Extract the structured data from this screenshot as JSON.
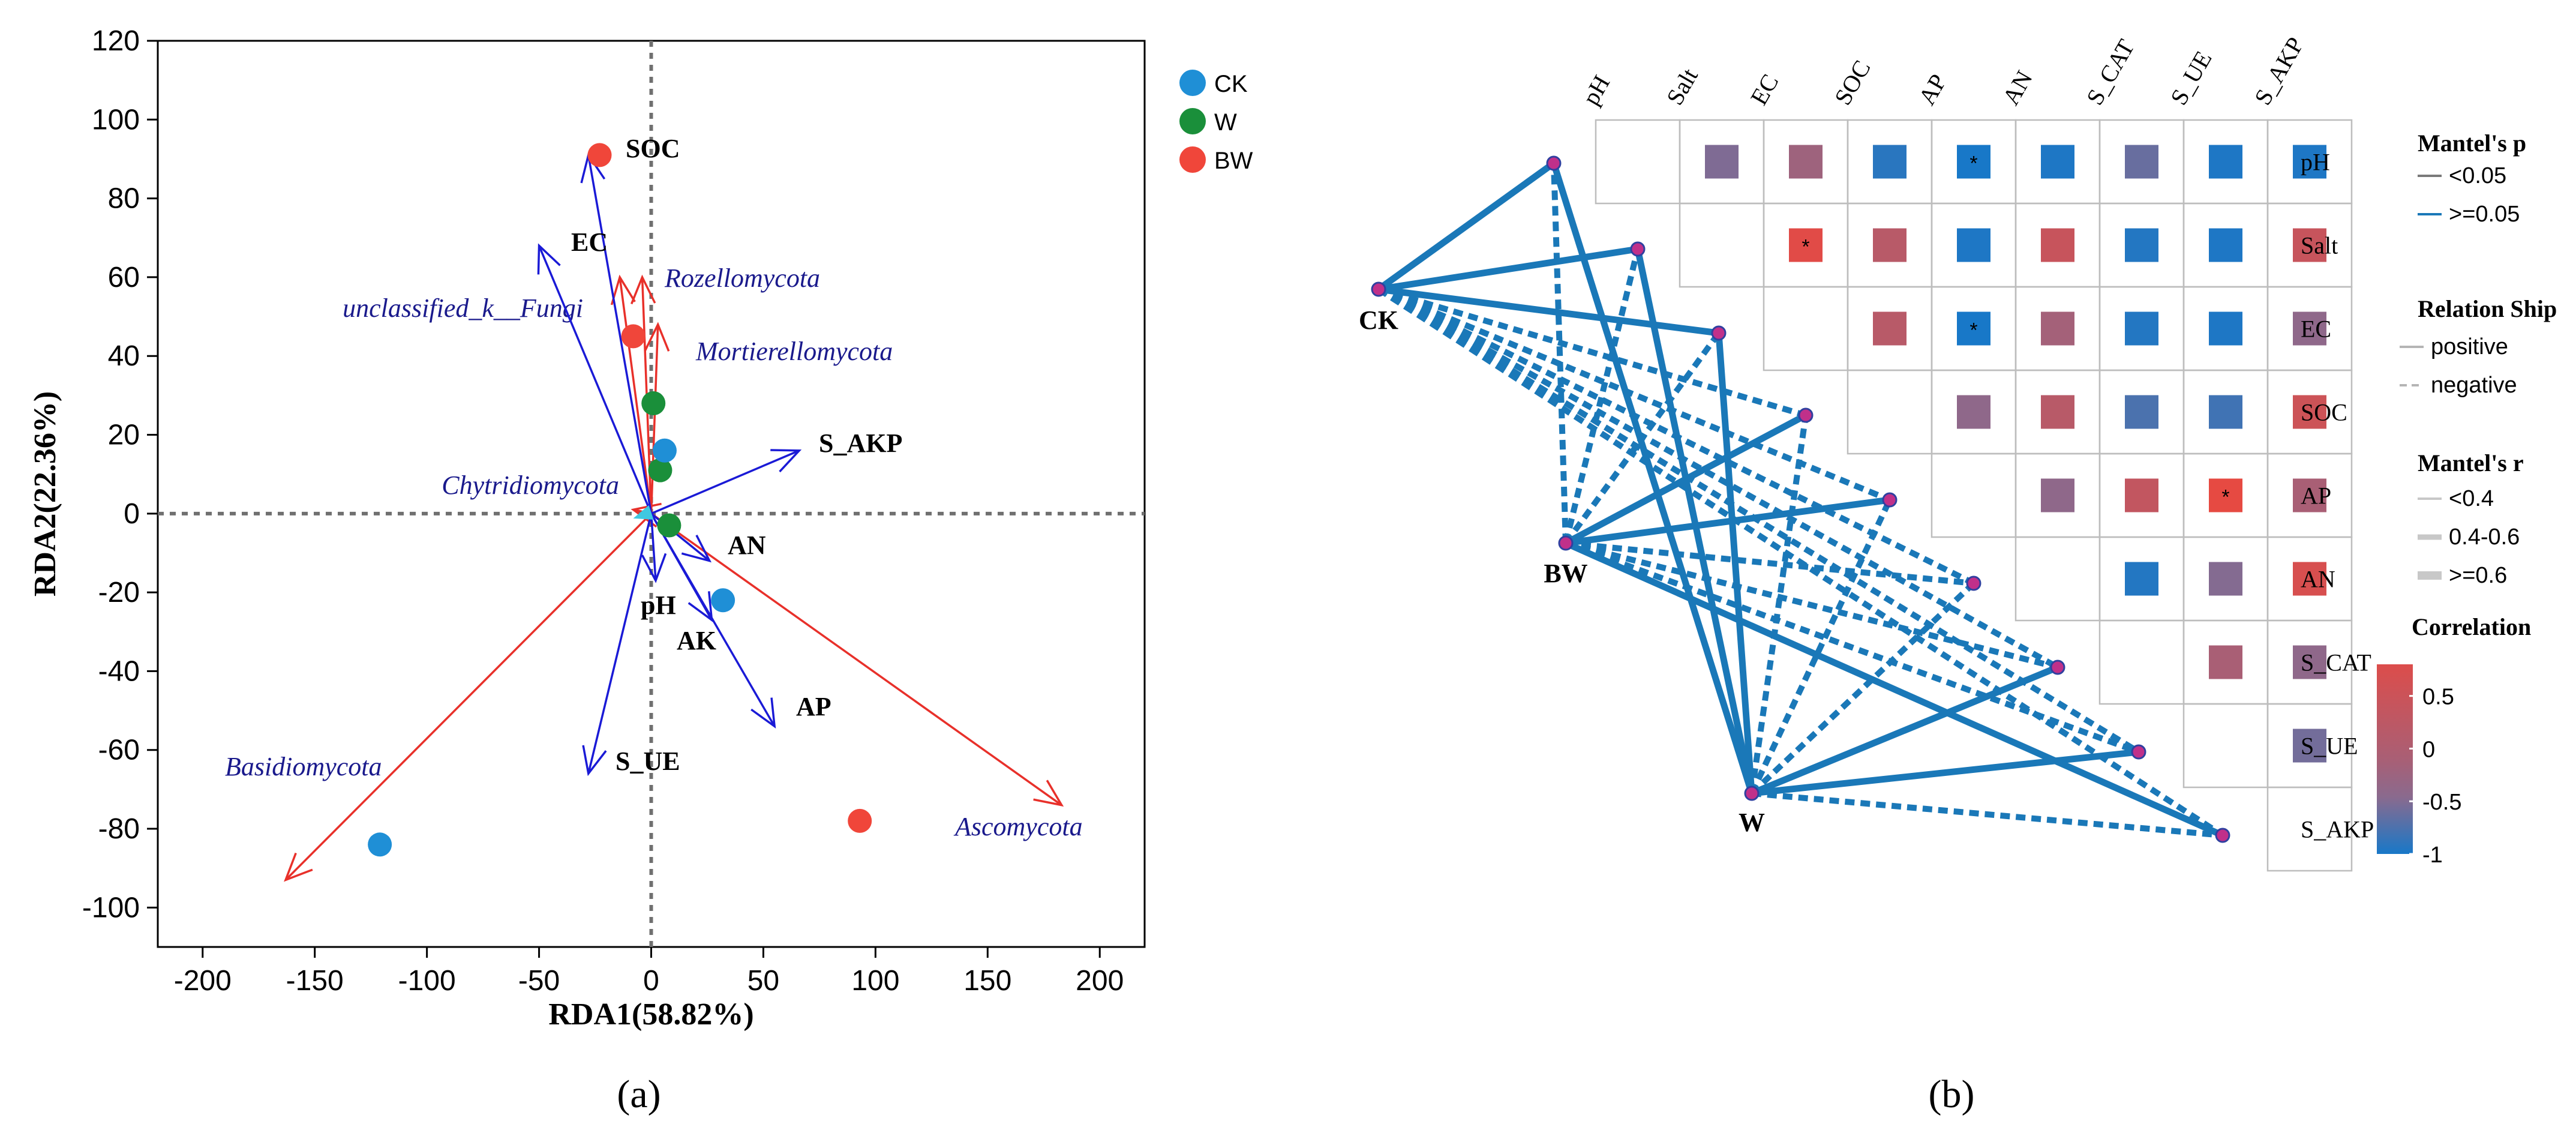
{
  "chart_data": [
    {
      "type": "scatter",
      "panel": "(a)",
      "xlabel": "RDA1(58.82%)",
      "ylabel": "RDA2(22.36%)",
      "xlim": [
        -220,
        220
      ],
      "ylim": [
        -110,
        120
      ],
      "xticks": [
        -200,
        -150,
        -100,
        -50,
        0,
        50,
        100,
        150,
        200
      ],
      "yticks": [
        -100,
        -80,
        -60,
        -40,
        -20,
        0,
        20,
        40,
        60,
        80,
        100,
        120
      ],
      "legend": [
        {
          "name": "CK",
          "color": "#1f8fd6"
        },
        {
          "name": "W",
          "color": "#1a8f3a"
        },
        {
          "name": "BW",
          "color": "#f0463a"
        }
      ],
      "points": [
        {
          "group": "BW",
          "x": -23,
          "y": 91
        },
        {
          "group": "BW",
          "x": -8,
          "y": 45
        },
        {
          "group": "BW",
          "x": 93,
          "y": -78
        },
        {
          "group": "W",
          "x": 1,
          "y": 28
        },
        {
          "group": "W",
          "x": 4,
          "y": 11
        },
        {
          "group": "W",
          "x": 8,
          "y": -3
        },
        {
          "group": "CK",
          "x": 6,
          "y": 16
        },
        {
          "group": "CK",
          "x": 32,
          "y": -22
        },
        {
          "group": "CK",
          "x": -121,
          "y": -84
        }
      ],
      "species_arrows": [
        {
          "label": "Rozellomycota",
          "x": -4,
          "y": 60
        },
        {
          "label": "unclassified_k__Fungi",
          "x": -14,
          "y": 60
        },
        {
          "label": "Mortierellomycota",
          "x": 3,
          "y": 48
        },
        {
          "label": "Chytridiomycota",
          "x": -8,
          "y": 1
        },
        {
          "label": "Basidiomycota",
          "x": -163,
          "y": -93
        },
        {
          "label": "Ascomycota",
          "x": 183,
          "y": -74
        }
      ],
      "env_arrows": [
        {
          "label": "SOC",
          "x": -28,
          "y": 91
        },
        {
          "label": "EC",
          "x": -50,
          "y": 68
        },
        {
          "label": "S_AKP",
          "x": 66,
          "y": 16
        },
        {
          "label": "AN",
          "x": 26,
          "y": -12
        },
        {
          "label": "pH",
          "x": 2,
          "y": -17
        },
        {
          "label": "AK",
          "x": 27,
          "y": -27
        },
        {
          "label": "AP",
          "x": 55,
          "y": -54
        },
        {
          "label": "S_UE",
          "x": -28,
          "y": -66
        }
      ],
      "colors": {
        "species": "#e8302a",
        "env": "#1a1ad6"
      }
    },
    {
      "type": "heatmap",
      "panel": "(b)",
      "variables": [
        "pH",
        "Salt",
        "EC",
        "SOC",
        "AP",
        "AN",
        "S_CAT",
        "S_UE",
        "S_AKP"
      ],
      "correlations": [
        {
          "row": "pH",
          "col": "Salt",
          "value": -0.1,
          "sig": false
        },
        {
          "row": "pH",
          "col": "EC",
          "value": 0.2,
          "sig": false
        },
        {
          "row": "pH",
          "col": "SOC",
          "value": -0.85,
          "sig": false
        },
        {
          "row": "pH",
          "col": "AP",
          "value": -1.0,
          "sig": true
        },
        {
          "row": "pH",
          "col": "AN",
          "value": -0.95,
          "sig": false
        },
        {
          "row": "pH",
          "col": "S_CAT",
          "value": -0.3,
          "sig": false
        },
        {
          "row": "pH",
          "col": "S_UE",
          "value": -0.95,
          "sig": false
        },
        {
          "row": "pH",
          "col": "S_AKP",
          "value": -0.95,
          "sig": false
        },
        {
          "row": "Salt",
          "col": "EC",
          "value": 0.85,
          "sig": true
        },
        {
          "row": "Salt",
          "col": "SOC",
          "value": 0.45,
          "sig": false
        },
        {
          "row": "Salt",
          "col": "AP",
          "value": -0.95,
          "sig": false
        },
        {
          "row": "Salt",
          "col": "AN",
          "value": 0.6,
          "sig": false
        },
        {
          "row": "Salt",
          "col": "S_CAT",
          "value": -0.9,
          "sig": false
        },
        {
          "row": "Salt",
          "col": "S_UE",
          "value": -0.95,
          "sig": false
        },
        {
          "row": "Salt",
          "col": "S_AKP",
          "value": 0.6,
          "sig": false
        },
        {
          "row": "EC",
          "col": "SOC",
          "value": 0.45,
          "sig": false
        },
        {
          "row": "EC",
          "col": "AP",
          "value": -1.0,
          "sig": true
        },
        {
          "row": "EC",
          "col": "AN",
          "value": 0.25,
          "sig": false
        },
        {
          "row": "EC",
          "col": "S_CAT",
          "value": -0.9,
          "sig": false
        },
        {
          "row": "EC",
          "col": "S_UE",
          "value": -0.95,
          "sig": false
        },
        {
          "row": "EC",
          "col": "S_AKP",
          "value": 0.05,
          "sig": false
        },
        {
          "row": "SOC",
          "col": "AP",
          "value": 0.05,
          "sig": false
        },
        {
          "row": "SOC",
          "col": "AN",
          "value": 0.45,
          "sig": false
        },
        {
          "row": "SOC",
          "col": "S_CAT",
          "value": -0.55,
          "sig": false
        },
        {
          "row": "SOC",
          "col": "S_UE",
          "value": -0.65,
          "sig": false
        },
        {
          "row": "SOC",
          "col": "S_AKP",
          "value": 0.65,
          "sig": false
        },
        {
          "row": "AP",
          "col": "AN",
          "value": 0.05,
          "sig": false
        },
        {
          "row": "AP",
          "col": "S_CAT",
          "value": 0.55,
          "sig": false
        },
        {
          "row": "AP",
          "col": "S_UE",
          "value": 0.9,
          "sig": true
        },
        {
          "row": "AP",
          "col": "S_AKP",
          "value": 0.3,
          "sig": false
        },
        {
          "row": "AN",
          "col": "S_CAT",
          "value": -0.9,
          "sig": false
        },
        {
          "row": "AN",
          "col": "S_UE",
          "value": -0.05,
          "sig": false
        },
        {
          "row": "AN",
          "col": "S_AKP",
          "value": 0.75,
          "sig": false
        },
        {
          "row": "S_CAT",
          "col": "S_UE",
          "value": 0.3,
          "sig": false
        },
        {
          "row": "S_CAT",
          "col": "S_AKP",
          "value": 0.05,
          "sig": false
        },
        {
          "row": "S_UE",
          "col": "S_AKP",
          "value": -0.2,
          "sig": false
        }
      ],
      "groups": [
        "CK",
        "BW",
        "W"
      ],
      "mantel_links": [
        {
          "group": "CK",
          "var": "pH",
          "style": "solid"
        },
        {
          "group": "CK",
          "var": "Salt",
          "style": "solid"
        },
        {
          "group": "CK",
          "var": "EC",
          "style": "solid"
        },
        {
          "group": "CK",
          "var": "SOC",
          "style": "dashed"
        },
        {
          "group": "CK",
          "var": "AP",
          "style": "dashed"
        },
        {
          "group": "CK",
          "var": "AN",
          "style": "dashed"
        },
        {
          "group": "CK",
          "var": "S_CAT",
          "style": "dashed"
        },
        {
          "group": "CK",
          "var": "S_UE",
          "style": "dashed"
        },
        {
          "group": "CK",
          "var": "S_AKP",
          "style": "dashed"
        },
        {
          "group": "BW",
          "var": "pH",
          "style": "dashed"
        },
        {
          "group": "BW",
          "var": "Salt",
          "style": "dashed"
        },
        {
          "group": "BW",
          "var": "EC",
          "style": "dashed"
        },
        {
          "group": "BW",
          "var": "SOC",
          "style": "solid"
        },
        {
          "group": "BW",
          "var": "AP",
          "style": "solid"
        },
        {
          "group": "BW",
          "var": "AN",
          "style": "dashed"
        },
        {
          "group": "BW",
          "var": "S_CAT",
          "style": "dashed"
        },
        {
          "group": "BW",
          "var": "S_UE",
          "style": "dashed"
        },
        {
          "group": "BW",
          "var": "S_AKP",
          "style": "solid"
        },
        {
          "group": "W",
          "var": "pH",
          "style": "solid"
        },
        {
          "group": "W",
          "var": "Salt",
          "style": "solid"
        },
        {
          "group": "W",
          "var": "EC",
          "style": "solid"
        },
        {
          "group": "W",
          "var": "SOC",
          "style": "dashed"
        },
        {
          "group": "W",
          "var": "AP",
          "style": "dashed"
        },
        {
          "group": "W",
          "var": "AN",
          "style": "dashed"
        },
        {
          "group": "W",
          "var": "S_CAT",
          "style": "solid"
        },
        {
          "group": "W",
          "var": "S_UE",
          "style": "solid"
        },
        {
          "group": "W",
          "var": "S_AKP",
          "style": "dashed"
        }
      ],
      "legend": {
        "mantel_p_title": "Mantel's p",
        "mantel_p_items": [
          "<0.05",
          ">=0.05"
        ],
        "relation_title": "Relation Ship",
        "relation_items": [
          "positive",
          "negative"
        ],
        "mantel_r_title": "Mantel's r",
        "mantel_r_items": [
          "<0.4",
          "0.4-0.6",
          ">=0.6"
        ],
        "correlation_title": "Correlation",
        "colorbar_ticks": [
          0.5,
          0,
          -0.5,
          -1
        ]
      },
      "colors": {
        "link": "#1a78b8",
        "neg": "#1878c8",
        "mid": "#8a6a8e",
        "pos": "#f0463a"
      }
    }
  ],
  "captions": {
    "a": "(a)",
    "b": "(b)"
  },
  "sig_marker": "*"
}
